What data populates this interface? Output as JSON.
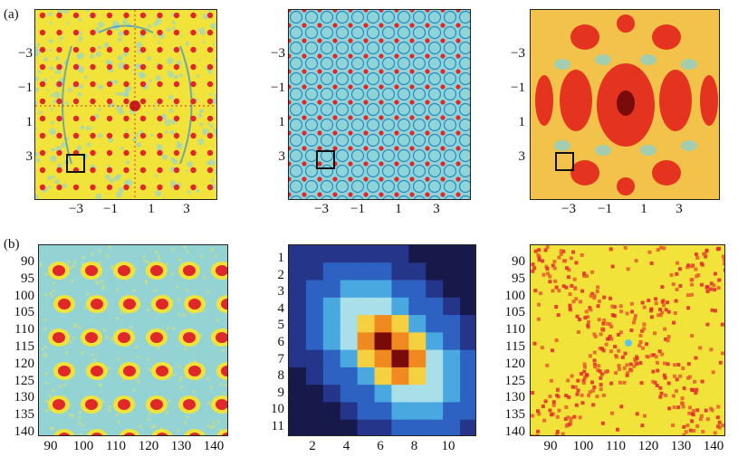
{
  "panel_labels": {
    "a": "(a)",
    "b": "(b)"
  },
  "row_a": {
    "ticks": [
      "-3",
      "-1",
      "1",
      "3"
    ],
    "tick_labels": [
      "−3",
      "−1",
      "1",
      "3"
    ],
    "panels": [
      {
        "name": "a-left",
        "colormap": "jet-yellow",
        "pattern": "lattice-fft"
      },
      {
        "name": "a-middle",
        "colormap": "jet-cyan",
        "pattern": "dense-lattice"
      },
      {
        "name": "a-right",
        "colormap": "hot-smooth",
        "pattern": "smooth-blobs"
      }
    ]
  },
  "row_b": {
    "left": {
      "yticks": [
        "90",
        "95",
        "100",
        "105",
        "110",
        "115",
        "120",
        "125",
        "130",
        "135",
        "140"
      ],
      "xticks": [
        "90",
        "100",
        "110",
        "120",
        "130",
        "140"
      ]
    },
    "middle": {
      "yticks": [
        "1",
        "2",
        "3",
        "4",
        "5",
        "6",
        "7",
        "8",
        "9",
        "10",
        "11"
      ],
      "xticks": [
        "2",
        "4",
        "6",
        "8",
        "10"
      ]
    },
    "right": {
      "yticks": [
        "90",
        "95",
        "100",
        "105",
        "110",
        "115",
        "120",
        "125",
        "130",
        "135",
        "140"
      ],
      "xticks": [
        "90",
        "100",
        "110",
        "120",
        "130",
        "140"
      ]
    }
  },
  "colors": {
    "yellow": "#f2e33a",
    "cyan": "#8fd4d8",
    "red": "#e0282a",
    "dark_red": "#7a0b0b",
    "navy": "#16194a",
    "blue": "#2f62c4",
    "orange_bg": "#f3c24a"
  }
}
